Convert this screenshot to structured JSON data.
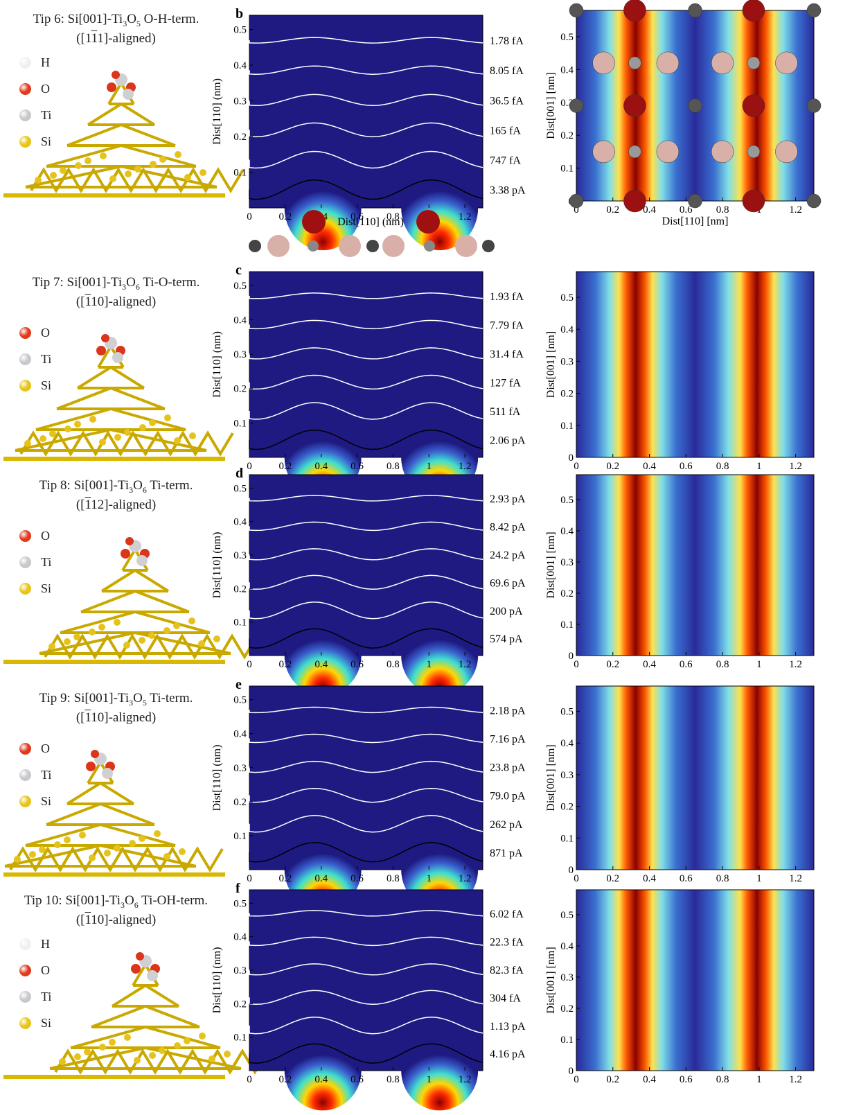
{
  "rows": [
    {
      "tip": "Tip 6: Si[001]-Ti",
      "tf1": "3",
      "tm": "O",
      "tf2": "5",
      "trest": " O-H-term.",
      "orient_pre": "([1",
      "orient_bar": "1",
      "orient_post": "1]-aligned)",
      "legend": [
        "H",
        "O",
        "Ti",
        "Si"
      ],
      "panel": "b",
      "contours": [
        "1.78 fA",
        "8.05 fA",
        "36.5 fA",
        "165 fA",
        "747 fA",
        "3.38 pA"
      ]
    },
    {
      "tip": "Tip 7: Si[001]-Ti",
      "tf1": "3",
      "tm": "O",
      "tf2": "6",
      "trest": " Ti-O-term.",
      "orient_pre": "([",
      "orient_bar": "1",
      "orient_post": "10]-aligned)",
      "legend": [
        "O",
        "Ti",
        "Si"
      ],
      "panel": "c",
      "contours": [
        "1.93 fA",
        "7.79 fA",
        "31.4 fA",
        "127 fA",
        "511 fA",
        "2.06 pA"
      ]
    },
    {
      "tip": "Tip 8: Si[001]-Ti",
      "tf1": "3",
      "tm": "O",
      "tf2": "6",
      "trest": " Ti-term.",
      "orient_pre": "([",
      "orient_bar": "1",
      "orient_post": "12]-aligned)",
      "legend": [
        "O",
        "Ti",
        "Si"
      ],
      "panel": "d",
      "contours": [
        "2.93 pA",
        "8.42 pA",
        "24.2 pA",
        "69.6 pA",
        "200 pA",
        "574 pA"
      ]
    },
    {
      "tip": "Tip 9: Si[001]-Ti",
      "tf1": "3",
      "tm": "O",
      "tf2": "5",
      "trest": " Ti-term.",
      "orient_pre": "([",
      "orient_bar": "1",
      "orient_post": "10]-aligned)",
      "legend": [
        "O",
        "Ti",
        "Si"
      ],
      "panel": "e",
      "contours": [
        "2.18 pA",
        "7.16 pA",
        "23.8 pA",
        "79.0 pA",
        "262 pA",
        "871 pA"
      ]
    },
    {
      "tip": "Tip 10: Si[001]-Ti",
      "tf1": "3",
      "tm": "O",
      "tf2": "6",
      "trest": " Ti-OH-term.",
      "orient_pre": "([",
      "orient_bar": "1",
      "orient_post": "10]-aligned)",
      "legend": [
        "H",
        "O",
        "Ti",
        "Si"
      ],
      "panel": "f",
      "contours": [
        "6.02 fA",
        "22.3 fA",
        "82.3 fA",
        "304 fA",
        "1.13 pA",
        "4.16 pA"
      ]
    }
  ],
  "axes": {
    "mid_ylabel": "Dist[110] (nm)",
    "mid_xlabel": "Dist[110] (nm)",
    "right_ylabel": "Dist[001] [nm]",
    "right_xlabel": "Dist[110] [nm]",
    "mid_yticks": [
      "0.1",
      "0.2",
      "0.3",
      "0.4",
      "0.5"
    ],
    "mid_xticks": [
      "0",
      "0.2",
      "0.4",
      "0.6",
      "0.8",
      "1",
      "1.2"
    ],
    "right_yticks": [
      "0",
      "0.1",
      "0.2",
      "0.3",
      "0.4",
      "0.5"
    ],
    "right_xticks": [
      "0",
      "0.2",
      "0.4",
      "0.6",
      "0.8",
      "1",
      "1.2"
    ]
  },
  "colors": {
    "bg": "#1e1a82",
    "contour": "#ffffff",
    "contour_dark": "#000000",
    "O": "#e0391e",
    "Ti": "#c8c8cc",
    "H": "#f0f0f0",
    "Si": "#e8c418"
  }
}
